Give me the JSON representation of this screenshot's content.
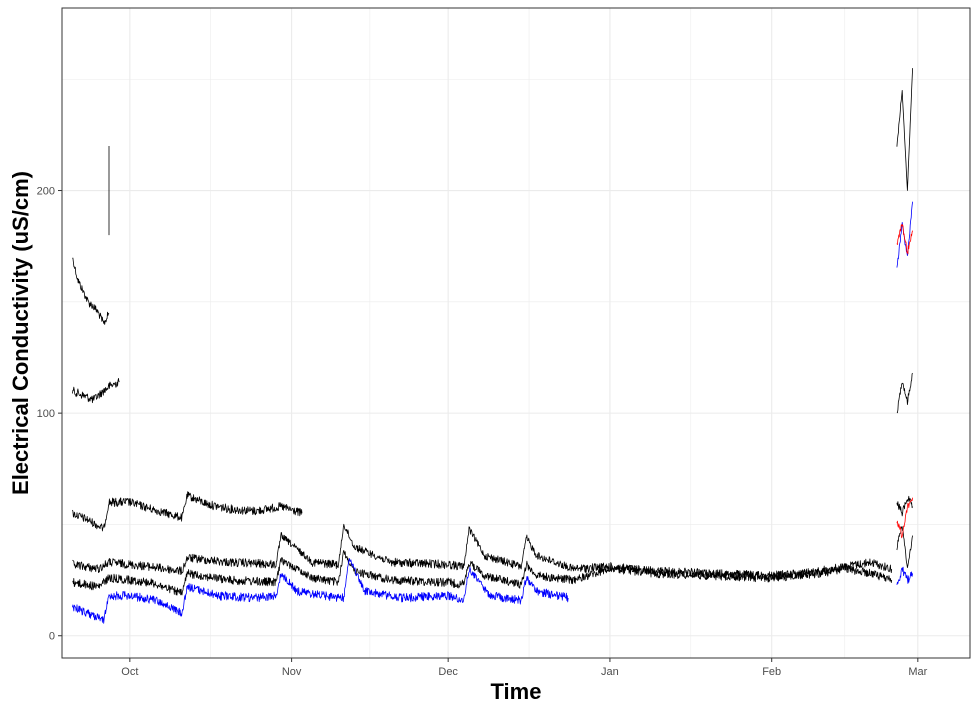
{
  "chart_data": {
    "type": "line",
    "xlabel": "Time",
    "ylabel": "Electrical Conductivity (uS/cm)",
    "x_ticks": [
      "Oct",
      "Nov",
      "Dec",
      "Jan",
      "Feb",
      "Mar"
    ],
    "x_tick_dates": [
      "Oct 1",
      "Nov 1",
      "Dec 1",
      "Jan 1",
      "Feb 1",
      "Mar 1"
    ],
    "xlim": [
      "Sep 18",
      "Mar 11"
    ],
    "y_ticks": [
      0,
      100,
      200
    ],
    "ylim": [
      -10,
      282
    ],
    "grid": true,
    "legend": "none",
    "colors": {
      "black": "#000000",
      "blue": "#0000ff",
      "red": "#ff0000",
      "grid": "#ebebeb",
      "panel_border": "#333333"
    },
    "series": [
      {
        "color": "#000000",
        "segments": [
          {
            "x": [
              "Sep 20",
              "Sep 21",
              "Sep 22",
              "Sep 23",
              "Sep 24",
              "Sep 25",
              "Sep 26",
              "Sep 27"
            ],
            "y": [
              170,
              160,
              155,
              150,
              148,
              145,
              140,
              145
            ]
          },
          {
            "x": [
              "Sep 27",
              "Sep 27"
            ],
            "y": [
              180,
              220
            ]
          },
          {
            "x": [
              "Feb 25",
              "Feb 26",
              "Feb 27",
              "Feb 28"
            ],
            "y": [
              220,
              245,
              200,
              255
            ]
          }
        ]
      },
      {
        "color": "#000000",
        "segments": [
          {
            "x": [
              "Sep 20",
              "Sep 22",
              "Sep 24",
              "Sep 26",
              "Sep 27",
              "Sep 29"
            ],
            "y": [
              110,
              108,
              106,
              110,
              112,
              114
            ]
          },
          {
            "x": [
              "Feb 25",
              "Feb 26",
              "Feb 27",
              "Feb 28"
            ],
            "y": [
              100,
              115,
              105,
              118
            ]
          }
        ]
      },
      {
        "color": "#000000",
        "segments": [
          {
            "x": [
              "Sep 20",
              "Sep 23",
              "Sep 26",
              "Sep 27",
              "Oct 1",
              "Oct 5",
              "Oct 11",
              "Oct 12",
              "Oct 16",
              "Oct 20",
              "Oct 25",
              "Oct 30",
              "Nov 3"
            ],
            "y": [
              55,
              52,
              48,
              60,
              60,
              57,
              53,
              63,
              59,
              57,
              56,
              58,
              55
            ]
          },
          {
            "x": [
              "Feb 25",
              "Feb 26",
              "Feb 27",
              "Feb 28"
            ],
            "y": [
              60,
              55,
              62,
              58
            ]
          }
        ]
      },
      {
        "color": "#000000",
        "segments": [
          {
            "x": [
              "Sep 20",
              "Sep 25",
              "Sep 27",
              "Oct 5",
              "Oct 11",
              "Oct 12",
              "Oct 20",
              "Oct 29",
              "Oct 30",
              "Nov 5",
              "Nov 10",
              "Nov 11",
              "Nov 13",
              "Nov 20",
              "Dec 1",
              "Dec 4",
              "Dec 5",
              "Dec 8",
              "Dec 15",
              "Dec 16",
              "Dec 18",
              "Dec 25",
              "Jan 1",
              "Jan 10",
              "Jan 20",
              "Feb 1",
              "Feb 10",
              "Feb 15",
              "Feb 20",
              "Feb 24"
            ],
            "y": [
              32,
              30,
              33,
              31,
              29,
              35,
              33,
              32,
              45,
              33,
              32,
              50,
              40,
              33,
              32,
              31,
              48,
              36,
              31,
              44,
              36,
              30,
              31,
              29,
              28,
              27,
              29,
              31,
              33,
              30
            ]
          },
          {
            "x": [
              "Feb 25",
              "Feb 26",
              "Feb 27",
              "Feb 28"
            ],
            "y": [
              40,
              50,
              30,
              45
            ]
          }
        ]
      },
      {
        "color": "#000000",
        "segments": [
          {
            "x": [
              "Sep 20",
              "Sep 25",
              "Sep 27",
              "Oct 5",
              "Oct 11",
              "Oct 12",
              "Oct 20",
              "Oct 29",
              "Oct 30",
              "Nov 5",
              "Nov 10",
              "Nov 11",
              "Nov 13",
              "Nov 20",
              "Dec 1",
              "Dec 4",
              "Dec 5",
              "Dec 8",
              "Dec 15",
              "Dec 16",
              "Dec 18",
              "Dec 25",
              "Jan 1",
              "Jan 10",
              "Jan 20",
              "Feb 1",
              "Feb 10",
              "Feb 15",
              "Feb 20",
              "Feb 24"
            ],
            "y": [
              24,
              22,
              26,
              24,
              19,
              28,
              25,
              24,
              34,
              26,
              24,
              38,
              29,
              25,
              24,
              23,
              33,
              27,
              23,
              32,
              27,
              25,
              30,
              28,
              27,
              26,
              28,
              30,
              28,
              25
            ]
          }
        ]
      },
      {
        "color": "#0000ff",
        "segments": [
          {
            "x": [
              "Sep 20",
              "Sep 23",
              "Sep 26",
              "Sep 27",
              "Oct 1",
              "Oct 6",
              "Oct 11",
              "Oct 12",
              "Oct 18",
              "Oct 25",
              "Oct 29",
              "Oct 30",
              "Nov 2",
              "Nov 7",
              "Nov 11",
              "Nov 12",
              "Nov 15",
              "Nov 22",
              "Dec 1",
              "Dec 4",
              "Dec 5",
              "Dec 9",
              "Dec 15",
              "Dec 16",
              "Dec 18",
              "Dec 22",
              "Dec 24"
            ],
            "y": [
              13,
              10,
              7,
              18,
              18,
              16,
              10,
              22,
              18,
              17,
              18,
              28,
              20,
              18,
              17,
              35,
              20,
              17,
              18,
              16,
              30,
              18,
              16,
              26,
              20,
              18,
              17
            ]
          },
          {
            "x": [
              "Feb 25",
              "Feb 26",
              "Feb 27",
              "Feb 28"
            ],
            "y": [
              165,
              185,
              170,
              195
            ]
          },
          {
            "x": [
              "Feb 25",
              "Feb 26",
              "Feb 27",
              "Feb 28"
            ],
            "y": [
              22,
              30,
              25,
              28
            ]
          }
        ]
      },
      {
        "color": "#ff0000",
        "segments": [
          {
            "x": [
              "Feb 25",
              "Feb 26",
              "Feb 27",
              "Feb 28"
            ],
            "y": [
              175,
              185,
              172,
              182
            ]
          },
          {
            "x": [
              "Feb 25",
              "Feb 26",
              "Feb 27",
              "Feb 28"
            ],
            "y": [
              52,
              45,
              58,
              62
            ]
          }
        ]
      }
    ]
  }
}
